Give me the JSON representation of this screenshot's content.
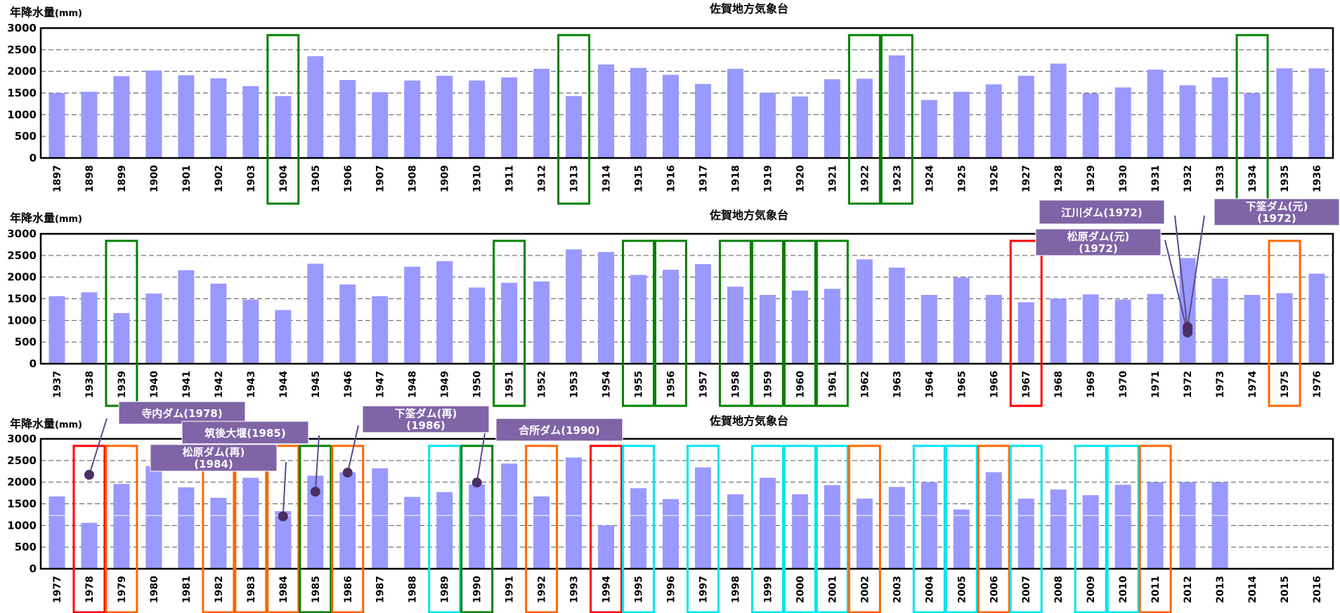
{
  "chart_data": [
    {
      "type": "bar",
      "title": "佐賀地方気象台",
      "ylabel": "年降水量",
      "yunit": "(mm)",
      "ylim": [
        0,
        3000
      ],
      "yticks": [
        0,
        500,
        1000,
        1500,
        2000,
        2500,
        3000
      ],
      "grid": true,
      "bar_color": "#9999ff",
      "categories": [
        "1897",
        "1898",
        "1899",
        "1900",
        "1901",
        "1902",
        "1903",
        "1904",
        "1905",
        "1906",
        "1907",
        "1908",
        "1909",
        "1910",
        "1911",
        "1912",
        "1913",
        "1914",
        "1915",
        "1916",
        "1917",
        "1918",
        "1919",
        "1920",
        "1921",
        "1922",
        "1923",
        "1924",
        "1925",
        "1926",
        "1927",
        "1928",
        "1929",
        "1930",
        "1931",
        "1932",
        "1933",
        "1934",
        "1935",
        "1936"
      ],
      "values": [
        1500,
        1530,
        1890,
        2020,
        1910,
        1840,
        1660,
        1430,
        2350,
        1800,
        1520,
        1790,
        1900,
        1790,
        1860,
        2060,
        1430,
        2160,
        2080,
        1920,
        1710,
        2060,
        1510,
        1420,
        1820,
        1830,
        2370,
        1340,
        1530,
        1700,
        1900,
        2180,
        1490,
        1630,
        2040,
        1680,
        1860,
        1500,
        2070,
        2070
      ],
      "highlights": [
        {
          "year": "1904",
          "color": "#008000"
        },
        {
          "year": "1913",
          "color": "#008000"
        },
        {
          "year": "1922",
          "color": "#008000"
        },
        {
          "year": "1923",
          "color": "#008000"
        },
        {
          "year": "1934",
          "color": "#008000"
        }
      ],
      "annotations": []
    },
    {
      "type": "bar",
      "title": "佐賀地方気象台",
      "ylabel": "年降水量",
      "yunit": "(mm)",
      "ylim": [
        0,
        3000
      ],
      "yticks": [
        0,
        500,
        1000,
        1500,
        2000,
        2500,
        3000
      ],
      "grid": true,
      "bar_color": "#9999ff",
      "categories": [
        "1937",
        "1938",
        "1939",
        "1940",
        "1941",
        "1942",
        "1943",
        "1944",
        "1945",
        "1946",
        "1947",
        "1948",
        "1949",
        "1950",
        "1951",
        "1952",
        "1953",
        "1954",
        "1955",
        "1956",
        "1957",
        "1958",
        "1959",
        "1960",
        "1961",
        "1962",
        "1963",
        "1964",
        "1965",
        "1966",
        "1967",
        "1968",
        "1969",
        "1970",
        "1971",
        "1972",
        "1973",
        "1974",
        "1975",
        "1976"
      ],
      "values": [
        1560,
        1650,
        1170,
        1620,
        2160,
        1850,
        1480,
        1240,
        2310,
        1830,
        1560,
        2240,
        2370,
        1760,
        1870,
        1900,
        2640,
        2580,
        2050,
        2170,
        2300,
        1780,
        1590,
        1690,
        1730,
        2410,
        2220,
        1590,
        1990,
        1590,
        1420,
        1500,
        1600,
        1480,
        1610,
        2440,
        1970,
        1590,
        1630,
        2080
      ],
      "highlights": [
        {
          "year": "1939",
          "color": "#008000"
        },
        {
          "year": "1951",
          "color": "#008000"
        },
        {
          "year": "1955",
          "color": "#008000"
        },
        {
          "year": "1956",
          "color": "#008000"
        },
        {
          "year": "1958",
          "color": "#008000"
        },
        {
          "year": "1959",
          "color": "#008000"
        },
        {
          "year": "1960",
          "color": "#008000"
        },
        {
          "year": "1961",
          "color": "#008000"
        },
        {
          "year": "1967",
          "color": "#ff0000"
        },
        {
          "year": "1975",
          "color": "#ff6600"
        }
      ],
      "annotations": [
        {
          "label": "江川ダム(1972)",
          "year": "1972",
          "value": 800
        },
        {
          "label": "松原ダム(元)(1972)",
          "year": "1972",
          "value": 720
        },
        {
          "label": "下筌ダム(元)(1972)",
          "year": "1972",
          "value": 850
        }
      ]
    },
    {
      "type": "bar",
      "title": "佐賀地方気象台",
      "ylabel": "年降水量",
      "yunit": "(mm)",
      "ylim": [
        0,
        3000
      ],
      "yticks": [
        0,
        500,
        1000,
        1500,
        2000,
        2500,
        3000
      ],
      "grid": true,
      "bar_color": "#9999ff",
      "categories": [
        "1977",
        "1978",
        "1979",
        "1980",
        "1981",
        "1982",
        "1983",
        "1984",
        "1985",
        "1986",
        "1987",
        "1988",
        "1989",
        "1990",
        "1991",
        "1992",
        "1993",
        "1994",
        "1995",
        "1996",
        "1997",
        "1998",
        "1999",
        "2000",
        "2001",
        "2002",
        "2003",
        "2004",
        "2005",
        "2006",
        "2007",
        "2008",
        "2009",
        "2010",
        "2011",
        "2012",
        "2013",
        "2014",
        "2015",
        "2016"
      ],
      "values": [
        1670,
        1060,
        1960,
        2370,
        1880,
        1640,
        2100,
        1330,
        2150,
        2230,
        2320,
        1660,
        1770,
        1950,
        2430,
        1670,
        2570,
        1000,
        1860,
        1610,
        2340,
        1720,
        2100,
        1720,
        1930,
        1620,
        1890,
        2000,
        1370,
        2230,
        1620,
        1830,
        1700,
        1940,
        2000,
        2000,
        2000,
        null,
        null,
        null
      ],
      "highlights": [
        {
          "year": "1978",
          "color": "#ff0000"
        },
        {
          "year": "1979",
          "color": "#ff6600"
        },
        {
          "year": "1982",
          "color": "#ff6600"
        },
        {
          "year": "1983",
          "color": "#ff6600"
        },
        {
          "year": "1984",
          "color": "#ff6600"
        },
        {
          "year": "1985",
          "color": "#008000"
        },
        {
          "year": "1986",
          "color": "#ff6600"
        },
        {
          "year": "1989",
          "color": "#00e5ee"
        },
        {
          "year": "1990",
          "color": "#008000"
        },
        {
          "year": "1992",
          "color": "#ff6600"
        },
        {
          "year": "1994",
          "color": "#ff0000"
        },
        {
          "year": "1995",
          "color": "#00e5ee"
        },
        {
          "year": "1997",
          "color": "#00e5ee"
        },
        {
          "year": "1999",
          "color": "#00e5ee"
        },
        {
          "year": "2000",
          "color": "#00e5ee"
        },
        {
          "year": "2001",
          "color": "#00e5ee"
        },
        {
          "year": "2002",
          "color": "#ff6600"
        },
        {
          "year": "2004",
          "color": "#00e5ee"
        },
        {
          "year": "2005",
          "color": "#00e5ee"
        },
        {
          "year": "2006",
          "color": "#ff6600"
        },
        {
          "year": "2007",
          "color": "#00e5ee"
        },
        {
          "year": "2009",
          "color": "#00e5ee"
        },
        {
          "year": "2010",
          "color": "#00e5ee"
        },
        {
          "year": "2011",
          "color": "#ff6600"
        }
      ],
      "annotations": [
        {
          "label": "寺内ダム(1978)",
          "year": "1978",
          "value": 2170
        },
        {
          "label": "松原ダム(再)(1984)",
          "year": "1984",
          "value": 1210
        },
        {
          "label": "筑後大堰(1985)",
          "year": "1985",
          "value": 1780
        },
        {
          "label": "下筌ダム(再)(1986)",
          "year": "1986",
          "value": 2220
        },
        {
          "label": "合所ダム(1990)",
          "year": "1990",
          "value": 1990
        }
      ]
    }
  ]
}
